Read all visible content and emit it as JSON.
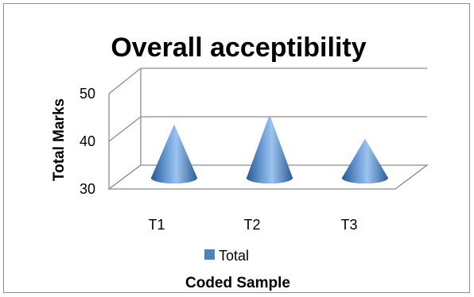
{
  "chart_data": {
    "type": "bar",
    "style": "3d-cone",
    "title": "Overall acceptibility",
    "xlabel": "Coded Sample",
    "ylabel": "Total Marks",
    "categories": [
      "T1",
      "T2",
      "T3"
    ],
    "series": [
      {
        "name": "Total",
        "values": [
          41,
          43,
          38
        ],
        "color": "#4f81bd"
      }
    ],
    "ylim": [
      30,
      50
    ],
    "yticks": [
      30,
      40,
      50
    ],
    "grid": true,
    "legend": "bottom"
  }
}
